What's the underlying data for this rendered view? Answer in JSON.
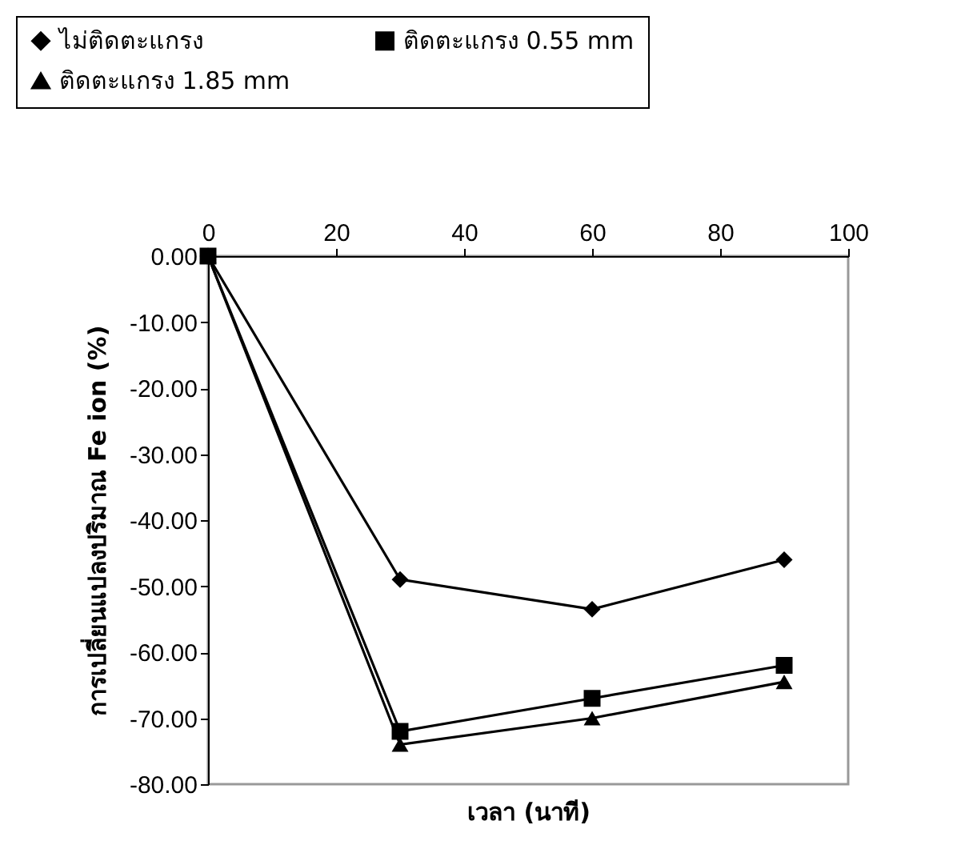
{
  "chart_data": {
    "type": "line",
    "xlabel": "เวลา (นาที)",
    "ylabel": "การเปลี่ยนแปลงปริมาณ Fe ion (%)",
    "x": [
      0,
      30,
      60,
      90
    ],
    "series": [
      {
        "name": "ไม่ติดตะแกรง",
        "color": "#000000",
        "marker": "diamond",
        "values": [
          0,
          -49,
          -53.5,
          -46
        ]
      },
      {
        "name": "ติดตะแกรง 0.55 mm",
        "color": "#000000",
        "marker": "square",
        "values": [
          0,
          -72,
          -67,
          -62
        ]
      },
      {
        "name": "ติดตะแกรง 1.85 mm",
        "color": "#000000",
        "marker": "triangle",
        "values": [
          0,
          -74,
          -70,
          -64.5
        ]
      }
    ],
    "xlim": [
      0,
      100
    ],
    "xticks": [
      0,
      20,
      40,
      60,
      80,
      100
    ],
    "ylim": [
      -80,
      0
    ],
    "yticks": [
      {
        "value": 0,
        "label": "0.00"
      },
      {
        "value": -10,
        "label": "-10.00"
      },
      {
        "value": -20,
        "label": "-20.00"
      },
      {
        "value": -30,
        "label": "-30.00"
      },
      {
        "value": -40,
        "label": "-40.00"
      },
      {
        "value": -50,
        "label": "-50.00"
      },
      {
        "value": -60,
        "label": "-60.00"
      },
      {
        "value": -70,
        "label": "-70.00"
      },
      {
        "value": -80,
        "label": "-80.00"
      }
    ],
    "grid": false,
    "legend": "top left"
  }
}
